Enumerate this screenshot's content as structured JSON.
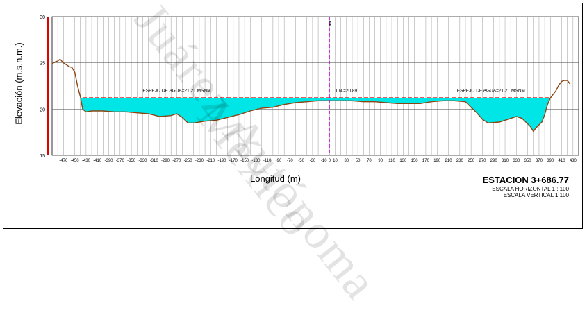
{
  "watermark": {
    "lines": [
      "Juárez Autónoma",
      "México"
    ]
  },
  "chart_data": {
    "type": "area",
    "ylabel": "Elevación (m.s.n.m.)",
    "xlabel": "Longitud (m)",
    "station_title": "ESTACION 3+686.77",
    "scales": [
      "ESCALA HORIZONTAL 1 : 100",
      "ESCALA VERTICAL 1:100"
    ],
    "xlim": [
      -490,
      440
    ],
    "ylim": [
      15,
      30
    ],
    "yticks": [
      15,
      20,
      25,
      30
    ],
    "xticks": [
      -470,
      -450,
      -430,
      -410,
      -390,
      -370,
      -350,
      -330,
      -310,
      -290,
      -270,
      -250,
      -230,
      -210,
      -190,
      -170,
      -150,
      -130,
      -110,
      -90,
      -70,
      -50,
      -30,
      -10,
      0,
      10,
      30,
      50,
      70,
      90,
      110,
      130,
      150,
      170,
      190,
      210,
      230,
      250,
      270,
      290,
      310,
      330,
      350,
      370,
      390,
      410,
      430
    ],
    "xtick_labels": [
      "-470",
      "-450",
      "-430",
      "-410",
      "-390",
      "-370",
      "-350",
      "-330",
      "-310",
      "-290",
      "-270",
      "-250",
      "-230",
      "-210",
      "-190",
      "-170",
      "-150",
      "-130",
      "-110",
      "-90",
      "-70",
      "-50",
      "-30",
      "-10",
      "0",
      "10",
      "30",
      "50",
      "70",
      "90",
      "110",
      "130",
      "150",
      "170",
      "190",
      "210",
      "230",
      "250",
      "270",
      "290",
      "310",
      "330",
      "350",
      "370",
      "390",
      "410",
      "430"
    ],
    "water_level": 21.21,
    "centerline_x": 0,
    "centerline_label": "¢",
    "annotations": [
      {
        "text": "ESPEJO DE AGUA=21.21 MSNM",
        "x": -330,
        "y": 21.4
      },
      {
        "text": "T.N.=20.89",
        "x": 10,
        "y": 21.4
      },
      {
        "text": "ESPEJO DE AGUA=21.21 MSNM",
        "x": 225,
        "y": 21.4
      }
    ],
    "colors": {
      "terrain": "#8B4513",
      "water_fill": "#00E5E5",
      "water_line": "#CC0000",
      "centerline": "#CC00CC",
      "grid": "#999999",
      "left_bar": "#E00000"
    },
    "grid": true,
    "terrain": {
      "x": [
        -490,
        -485,
        -480,
        -476,
        -470,
        -465,
        -460,
        -455,
        -450,
        -445,
        -440,
        -436,
        -430,
        -420,
        -400,
        -380,
        -360,
        -340,
        -320,
        -300,
        -280,
        -270,
        -260,
        -250,
        -240,
        -220,
        -200,
        -180,
        -160,
        -140,
        -120,
        -100,
        -80,
        -60,
        -40,
        -20,
        0,
        20,
        40,
        60,
        80,
        100,
        120,
        140,
        160,
        180,
        200,
        220,
        240,
        250,
        260,
        270,
        280,
        300,
        320,
        330,
        340,
        350,
        355,
        360,
        365,
        370,
        375,
        380,
        385,
        390,
        395,
        400,
        405,
        410,
        415,
        420,
        425
      ],
      "y": [
        24.9,
        25.1,
        25.2,
        25.4,
        25.0,
        24.8,
        24.6,
        24.5,
        24.0,
        22.5,
        21.3,
        20.0,
        19.7,
        19.8,
        19.8,
        19.7,
        19.7,
        19.6,
        19.5,
        19.2,
        19.3,
        19.5,
        19.1,
        18.5,
        18.5,
        18.7,
        18.8,
        19.1,
        19.4,
        19.8,
        20.1,
        20.2,
        20.5,
        20.7,
        20.8,
        20.9,
        20.9,
        20.9,
        20.9,
        20.8,
        20.8,
        20.7,
        20.6,
        20.6,
        20.6,
        20.8,
        20.9,
        20.9,
        20.8,
        20.2,
        19.6,
        18.9,
        18.5,
        18.6,
        19.0,
        19.2,
        19.0,
        18.4,
        18.1,
        17.6,
        18.0,
        18.3,
        18.6,
        19.4,
        20.5,
        21.2,
        21.6,
        22.0,
        22.6,
        23.0,
        23.1,
        23.1,
        22.7
      ]
    }
  }
}
